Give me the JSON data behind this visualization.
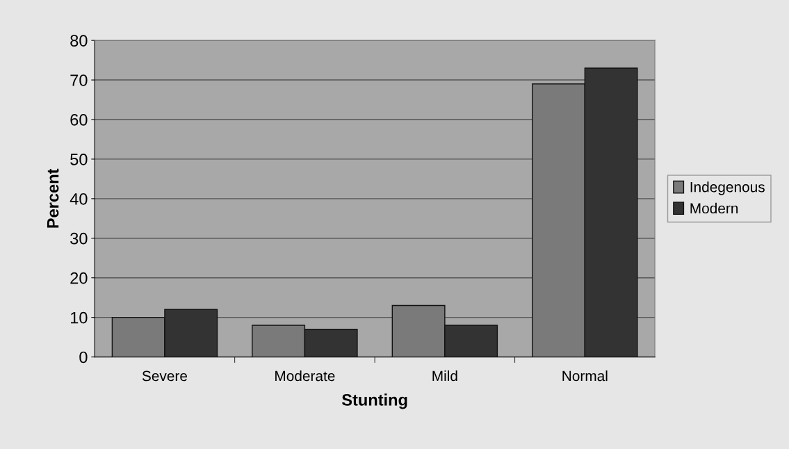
{
  "chart_data": {
    "type": "bar",
    "xlabel": "Stunting",
    "ylabel": "Percent",
    "categories": [
      "Severe",
      "Moderate",
      "Mild",
      "Normal"
    ],
    "series": [
      {
        "name": "Indegenous",
        "color": "#7a7a7a",
        "values": [
          10,
          8,
          13,
          69
        ]
      },
      {
        "name": "Modern",
        "color": "#333333",
        "values": [
          12,
          7,
          8,
          73
        ]
      }
    ],
    "ylim": [
      0,
      80
    ],
    "yticks": [
      0,
      10,
      20,
      30,
      40,
      50,
      60,
      70,
      80
    ],
    "grid": "y",
    "legend": "right"
  }
}
